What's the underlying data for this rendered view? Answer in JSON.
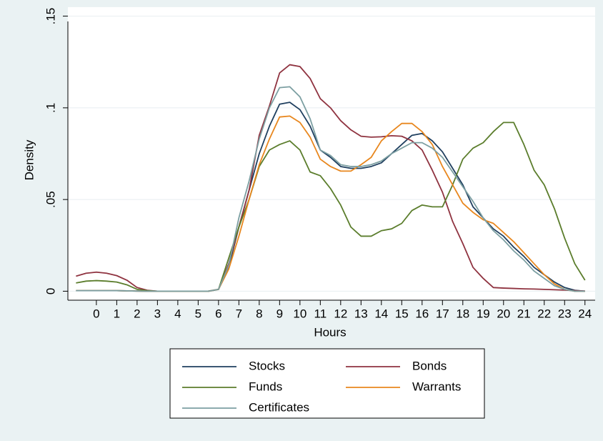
{
  "chart_data": {
    "type": "line",
    "x_label": "Hours",
    "y_label": "Density",
    "x": [
      -1,
      -0.5,
      0,
      0.5,
      1,
      1.5,
      2,
      2.5,
      3,
      3.5,
      4,
      4.5,
      5,
      5.5,
      6,
      6.5,
      7,
      7.5,
      8,
      8.5,
      9,
      9.5,
      10,
      10.5,
      11,
      11.5,
      12,
      12.5,
      13,
      13.5,
      14,
      14.5,
      15,
      15.5,
      16,
      16.5,
      17,
      17.5,
      18,
      18.5,
      19,
      19.5,
      20,
      20.5,
      21,
      21.5,
      22,
      22.5,
      23,
      23.5,
      24
    ],
    "series": [
      {
        "name": "Stocks",
        "color": "#1f3f5f",
        "values": [
          0.0003,
          0.0003,
          0.0003,
          0.0003,
          0.0003,
          0.0002,
          0.0001,
          0,
          0,
          0,
          0,
          0,
          0,
          0,
          0.001,
          0.013,
          0.035,
          0.055,
          0.075,
          0.09,
          0.102,
          0.103,
          0.099,
          0.09,
          0.077,
          0.073,
          0.068,
          0.067,
          0.067,
          0.068,
          0.07,
          0.075,
          0.08,
          0.085,
          0.086,
          0.082,
          0.076,
          0.067,
          0.058,
          0.046,
          0.04,
          0.034,
          0.03,
          0.024,
          0.019,
          0.013,
          0.009,
          0.005,
          0.002,
          0.0005,
          0
        ]
      },
      {
        "name": "Bonds",
        "color": "#8f3340",
        "values": [
          0.0082,
          0.0098,
          0.0104,
          0.0098,
          0.0085,
          0.006,
          0.002,
          0.0005,
          0,
          0,
          0,
          0,
          0,
          0,
          0.001,
          0.015,
          0.035,
          0.055,
          0.085,
          0.101,
          0.119,
          0.1235,
          0.1225,
          0.116,
          0.105,
          0.1,
          0.093,
          0.088,
          0.0845,
          0.084,
          0.0842,
          0.0848,
          0.0845,
          0.082,
          0.077,
          0.066,
          0.054,
          0.038,
          0.026,
          0.013,
          0.007,
          0.002,
          0.0017,
          0.0015,
          0.0013,
          0.0012,
          0.001,
          0.0008,
          0.0006,
          0.0003,
          0.0001
        ]
      },
      {
        "name": "Funds",
        "color": "#5b7d2c",
        "values": [
          0.0045,
          0.0055,
          0.0058,
          0.0055,
          0.005,
          0.0035,
          0.001,
          0.0003,
          0,
          0,
          0,
          0,
          0,
          0,
          0.001,
          0.018,
          0.035,
          0.05,
          0.068,
          0.077,
          0.08,
          0.082,
          0.077,
          0.065,
          0.063,
          0.056,
          0.047,
          0.035,
          0.03,
          0.03,
          0.033,
          0.034,
          0.037,
          0.044,
          0.047,
          0.046,
          0.046,
          0.058,
          0.072,
          0.078,
          0.081,
          0.087,
          0.092,
          0.092,
          0.08,
          0.066,
          0.058,
          0.045,
          0.029,
          0.015,
          0.006
        ]
      },
      {
        "name": "Warrants",
        "color": "#e8871e",
        "values": [
          0.0003,
          0.0003,
          0.0003,
          0.0003,
          0.0003,
          0.0002,
          0.0001,
          0,
          0,
          0,
          0,
          0,
          0,
          0,
          0.001,
          0.012,
          0.03,
          0.05,
          0.069,
          0.083,
          0.095,
          0.0955,
          0.092,
          0.084,
          0.072,
          0.068,
          0.0655,
          0.0655,
          0.069,
          0.073,
          0.082,
          0.087,
          0.0915,
          0.0915,
          0.087,
          0.08,
          0.068,
          0.058,
          0.048,
          0.043,
          0.039,
          0.037,
          0.032,
          0.027,
          0.021,
          0.015,
          0.009,
          0.004,
          0.001,
          0,
          0
        ]
      },
      {
        "name": "Certificates",
        "color": "#7c9fa2",
        "values": [
          0.0003,
          0.0003,
          0.0003,
          0.0003,
          0.0003,
          0.0002,
          0.0001,
          0,
          0,
          0,
          0,
          0,
          0,
          0,
          0.001,
          0.014,
          0.04,
          0.06,
          0.083,
          0.1,
          0.111,
          0.1115,
          0.106,
          0.094,
          0.077,
          0.074,
          0.069,
          0.068,
          0.068,
          0.069,
          0.071,
          0.075,
          0.078,
          0.081,
          0.081,
          0.078,
          0.073,
          0.065,
          0.057,
          0.049,
          0.04,
          0.033,
          0.028,
          0.022,
          0.017,
          0.011,
          0.007,
          0.003,
          0.001,
          0,
          0
        ]
      }
    ],
    "xlim": [
      -1.4,
      24.5
    ],
    "xticks": [
      0,
      1,
      2,
      3,
      4,
      5,
      6,
      7,
      8,
      9,
      10,
      11,
      12,
      13,
      14,
      15,
      16,
      17,
      18,
      19,
      20,
      21,
      22,
      23,
      24
    ],
    "ylim": [
      -0.0049,
      0.1549
    ],
    "yticks": [
      0,
      {
        "value": 0.05,
        "label": ".05"
      },
      {
        "value": 0.1,
        "label": ".1"
      },
      {
        "value": 0.15,
        "label": ".15"
      }
    ],
    "grid": true,
    "legend": "bottom"
  }
}
